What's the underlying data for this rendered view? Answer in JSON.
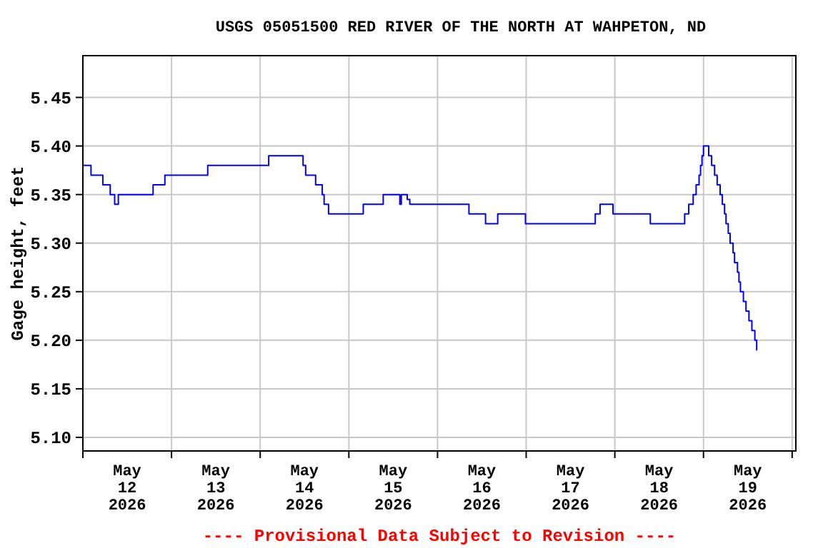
{
  "chart_data": {
    "type": "step",
    "title": "USGS 05051500 RED RIVER OF THE NORTH AT WAHPETON, ND",
    "ylabel": "Gage height, feet",
    "annotations": [
      "---- Provisional Data Subject to Revision ----"
    ],
    "xlim": [
      "2026-05-12T00:00",
      "2026-05-20T01:00"
    ],
    "ylim": [
      5.086,
      5.493
    ],
    "xticks": [
      {
        "value": "2026-05-12T00:00",
        "label": null
      },
      {
        "value": "2026-05-12T12:00",
        "label": "May 12 2026"
      },
      {
        "value": "2026-05-13T00:00",
        "label": null
      },
      {
        "value": "2026-05-13T12:00",
        "label": "May 13 2026"
      },
      {
        "value": "2026-05-14T00:00",
        "label": null
      },
      {
        "value": "2026-05-14T12:00",
        "label": "May 14 2026"
      },
      {
        "value": "2026-05-15T00:00",
        "label": null
      },
      {
        "value": "2026-05-15T12:00",
        "label": "May 15 2026"
      },
      {
        "value": "2026-05-16T00:00",
        "label": null
      },
      {
        "value": "2026-05-16T12:00",
        "label": "May 16 2026"
      },
      {
        "value": "2026-05-17T00:00",
        "label": null
      },
      {
        "value": "2026-05-17T12:00",
        "label": "May 17 2026"
      },
      {
        "value": "2026-05-18T00:00",
        "label": null
      },
      {
        "value": "2026-05-18T12:00",
        "label": "May 18 2026"
      },
      {
        "value": "2026-05-19T00:00",
        "label": null
      },
      {
        "value": "2026-05-19T12:00",
        "label": "May 19 2026"
      },
      {
        "value": "2026-05-20T00:00",
        "label": null
      }
    ],
    "yticks": [
      {
        "value": 5.1,
        "label": "5.10"
      },
      {
        "value": 5.15,
        "label": "5.15"
      },
      {
        "value": 5.2,
        "label": "5.20"
      },
      {
        "value": 5.25,
        "label": "5.25"
      },
      {
        "value": 5.3,
        "label": "5.30"
      },
      {
        "value": 5.35,
        "label": "5.35"
      },
      {
        "value": 5.4,
        "label": "5.40"
      },
      {
        "value": 5.45,
        "label": "5.45"
      }
    ],
    "grid": true,
    "marker": "none",
    "line_style": "solid",
    "series": [
      {
        "color": "#0000ff",
        "x": [
          "2026-05-12T00:00",
          "2026-05-12T02:12",
          "2026-05-12T05:24",
          "2026-05-12T07:24",
          "2026-05-12T08:36",
          "2026-05-12T09:36",
          "2026-05-12T19:00",
          "2026-05-12T22:12",
          "2026-05-13T09:48",
          "2026-05-14T02:18",
          "2026-05-14T11:36",
          "2026-05-14T12:18",
          "2026-05-14T15:00",
          "2026-05-14T16:48",
          "2026-05-14T17:18",
          "2026-05-14T18:30",
          "2026-05-15T03:54",
          "2026-05-15T09:18",
          "2026-05-15T13:48",
          "2026-05-15T14:12",
          "2026-05-15T15:48",
          "2026-05-15T16:30",
          "2026-05-16T08:30",
          "2026-05-16T13:00",
          "2026-05-16T16:18",
          "2026-05-16T23:48",
          "2026-05-17T18:42",
          "2026-05-17T20:00",
          "2026-05-17T23:30",
          "2026-05-18T09:36",
          "2026-05-18T18:54",
          "2026-05-18T20:00",
          "2026-05-18T21:12",
          "2026-05-18T22:00",
          "2026-05-18T22:48",
          "2026-05-18T23:12",
          "2026-05-18T23:36",
          "2026-05-19T00:00",
          "2026-05-19T01:24",
          "2026-05-19T02:12",
          "2026-05-19T03:00",
          "2026-05-19T03:42",
          "2026-05-19T04:30",
          "2026-05-19T05:06",
          "2026-05-19T05:42",
          "2026-05-19T06:06",
          "2026-05-19T06:42",
          "2026-05-19T07:12",
          "2026-05-19T08:00",
          "2026-05-19T08:24",
          "2026-05-19T09:12",
          "2026-05-19T09:36",
          "2026-05-19T10:00",
          "2026-05-19T10:48",
          "2026-05-19T11:30",
          "2026-05-19T12:18",
          "2026-05-19T13:06",
          "2026-05-19T13:54",
          "2026-05-19T14:24",
          "2026-05-19T14:30"
        ],
        "values": [
          5.38,
          5.37,
          5.36,
          5.35,
          5.34,
          5.35,
          5.36,
          5.37,
          5.38,
          5.39,
          5.38,
          5.37,
          5.36,
          5.35,
          5.34,
          5.33,
          5.34,
          5.35,
          5.34,
          5.35,
          5.345,
          5.34,
          5.33,
          5.32,
          5.33,
          5.32,
          5.33,
          5.34,
          5.33,
          5.32,
          5.33,
          5.34,
          5.35,
          5.36,
          5.37,
          5.38,
          5.39,
          5.4,
          5.39,
          5.38,
          5.37,
          5.36,
          5.35,
          5.34,
          5.33,
          5.32,
          5.31,
          5.3,
          5.29,
          5.28,
          5.27,
          5.26,
          5.25,
          5.24,
          5.23,
          5.22,
          5.21,
          5.2,
          5.19,
          5.19
        ]
      }
    ]
  }
}
